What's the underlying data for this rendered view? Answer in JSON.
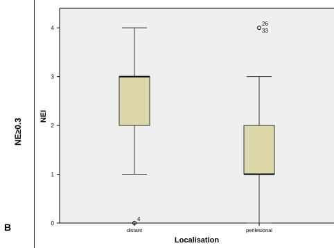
{
  "figure": {
    "side_label": "NE≥0.3",
    "panel_letter": "B"
  },
  "chart_data": {
    "type": "boxplot",
    "xlabel": "Localisation",
    "ylabel": "NEI",
    "ylim": [
      0,
      4.4
    ],
    "yticks": [
      0,
      1,
      2,
      3,
      4
    ],
    "grid": false,
    "colors": {
      "plot_bg": "#efefef",
      "box_fill": "#ddd8aa",
      "box_stroke": "#333333"
    },
    "groups": [
      {
        "category": "distant",
        "min": 1,
        "q1": 2,
        "median": 3,
        "q3": 3,
        "max": 4,
        "outliers": [
          {
            "value": 0,
            "label": "4"
          }
        ]
      },
      {
        "category": "perilesional",
        "min": 0,
        "q1": 1,
        "median": 1,
        "q3": 2,
        "max": 3,
        "outliers": [
          {
            "value": 4,
            "label": "26\n33"
          }
        ]
      }
    ]
  }
}
